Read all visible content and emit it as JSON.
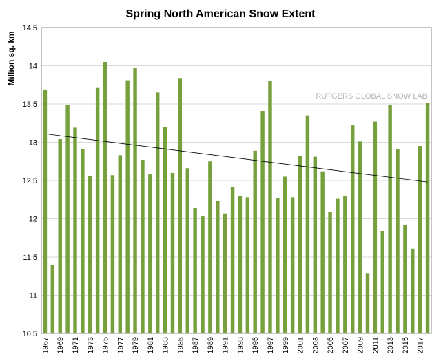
{
  "chart_data": {
    "type": "bar",
    "title": "Spring North American Snow Extent",
    "ylabel": "Million sq. km",
    "xlabel": "",
    "watermark": "RUTGERS GLOBAL SNOW LAB",
    "ylim": [
      10.5,
      14.5
    ],
    "yticks": [
      "10.5",
      "11",
      "11.5",
      "12",
      "12.5",
      "13",
      "13.5",
      "14",
      "14.5"
    ],
    "grid": true,
    "bar_color": "#76a03c",
    "categories": [
      1967,
      1968,
      1969,
      1970,
      1971,
      1972,
      1973,
      1974,
      1975,
      1976,
      1977,
      1978,
      1979,
      1980,
      1981,
      1982,
      1983,
      1984,
      1985,
      1986,
      1987,
      1988,
      1989,
      1990,
      1991,
      1992,
      1993,
      1994,
      1995,
      1996,
      1997,
      1998,
      1999,
      2000,
      2001,
      2002,
      2003,
      2004,
      2005,
      2006,
      2007,
      2008,
      2009,
      2010,
      2011,
      2012,
      2013,
      2014,
      2015,
      2016,
      2017,
      2018
    ],
    "xtick_labels": [
      "1967",
      "1969",
      "1971",
      "1973",
      "1975",
      "1977",
      "1979",
      "1981",
      "1983",
      "1985",
      "1987",
      "1989",
      "1991",
      "1993",
      "1995",
      "1997",
      "1999",
      "2001",
      "2003",
      "2005",
      "2007",
      "2009",
      "2011",
      "2013",
      "2015",
      "2017"
    ],
    "values": [
      13.69,
      11.4,
      13.04,
      13.49,
      13.19,
      12.91,
      12.56,
      13.71,
      14.05,
      12.57,
      12.83,
      13.81,
      13.97,
      12.77,
      12.58,
      13.65,
      13.2,
      12.6,
      13.84,
      12.66,
      12.14,
      12.04,
      12.75,
      12.23,
      12.07,
      12.41,
      12.3,
      12.28,
      12.89,
      13.41,
      13.8,
      12.27,
      12.55,
      12.28,
      12.82,
      13.35,
      12.81,
      12.62,
      12.09,
      12.26,
      12.3,
      13.22,
      13.01,
      11.29,
      13.27,
      11.84,
      13.49,
      12.91,
      11.92,
      11.61,
      12.95,
      13.51
    ],
    "trend": {
      "start": 13.11,
      "end": 12.48
    }
  }
}
